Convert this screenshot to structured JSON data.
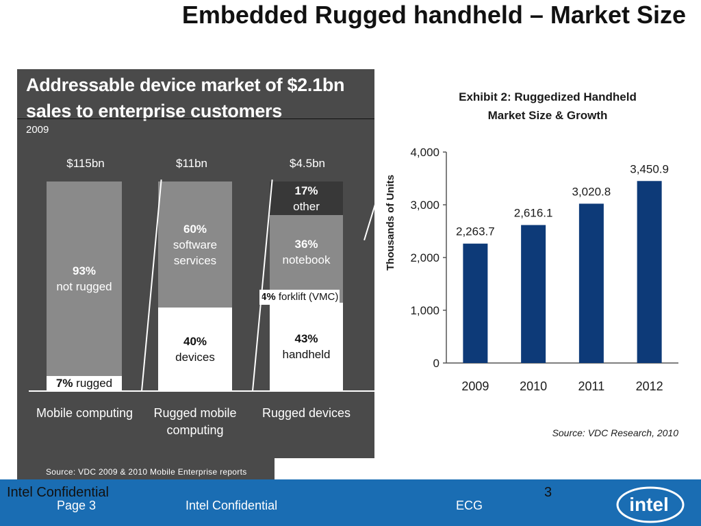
{
  "title": "Embedded Rugged handheld – Market Size",
  "left_panel": {
    "title_line1": "Addressable device market of $2.1bn",
    "title_line2": "sales to enterprise customers",
    "year": "2009",
    "columns": [
      {
        "header": "$115bn",
        "category_line1": "Mobile computing",
        "category_line2": ""
      },
      {
        "header": "$11bn",
        "category_line1": "Rugged mobile",
        "category_line2": "computing"
      },
      {
        "header": "$4.5bn",
        "category_line1": "Rugged devices",
        "category_line2": ""
      }
    ],
    "segments": {
      "not_rugged_pct": "93%",
      "not_rugged_label": "not rugged",
      "rugged_pct": "7%",
      "rugged_label": " rugged",
      "software_pct": "60%",
      "software_label1": "software",
      "software_label2": "services",
      "devices_pct": "40%",
      "devices_label": "devices",
      "other_pct": "17%",
      "other_label": "other",
      "notebook_pct": "36%",
      "notebook_label": "notebook",
      "forklift_pct": "4%",
      "forklift_label": " forklift (VMC)",
      "handheld_pct": "43%",
      "handheld_label": "handheld"
    },
    "source": "Source: VDC 2009 & 2010 Mobile Enterprise reports"
  },
  "chart_data": {
    "type": "bar",
    "title_line1": "Exhibit 2: Ruggedized Handheld",
    "title_line2": "Market Size & Growth",
    "ylabel": "Thousands of Units",
    "categories": [
      "2009",
      "2010",
      "2011",
      "2012"
    ],
    "values": [
      2263.7,
      2616.1,
      3020.8,
      3450.9
    ],
    "value_labels": [
      "2,263.7",
      "2,616.1",
      "3,020.8",
      "3,450.9"
    ],
    "yticks": [
      "0",
      "1,000",
      "2,000",
      "3,000",
      "4,000"
    ],
    "ylim": [
      0,
      4000
    ],
    "source": "Source: VDC Research, 2010",
    "bar_color": "#0d3a78"
  },
  "footer": {
    "confidential": "Intel Confidential",
    "slide_number": "3",
    "page": "Page 3",
    "center": "Intel Confidential",
    "group": "ECG",
    "logo": "intel"
  }
}
